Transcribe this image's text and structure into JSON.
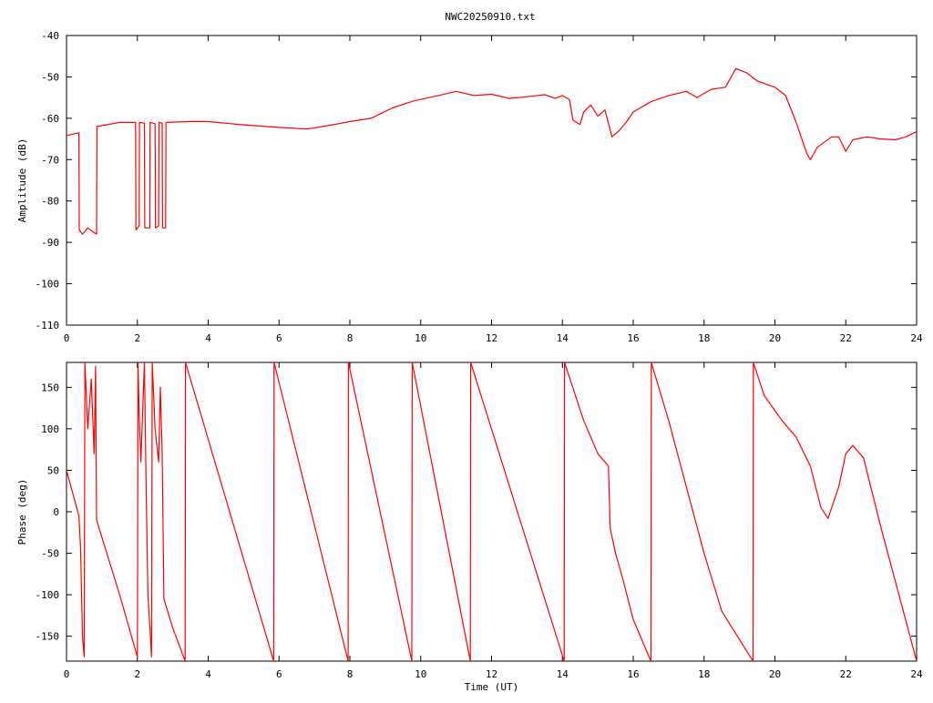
{
  "title": "NWC20250910.txt",
  "colors": {
    "trace": "#ff0000",
    "axis": "#000000",
    "background": "#ffffff"
  },
  "chart_data": [
    {
      "type": "line",
      "title": "NWC20250910.txt",
      "xlabel": "",
      "ylabel": "Amplitude (dB)",
      "xlim": [
        0,
        24
      ],
      "ylim": [
        -110,
        -40
      ],
      "xticks": [
        "0",
        "2",
        "4",
        "6",
        "8",
        "10",
        "12",
        "14",
        "16",
        "18",
        "20",
        "22",
        "24"
      ],
      "yticks": [
        "-40",
        "-50",
        "-60",
        "-70",
        "-80",
        "-90",
        "-100",
        "-110"
      ],
      "grid": false,
      "series": [
        {
          "points": [
            [
              0.0,
              -64.2
            ],
            [
              0.35,
              -63.5
            ],
            [
              0.36,
              -87.0
            ],
            [
              0.45,
              -88.0
            ],
            [
              0.6,
              -86.5
            ],
            [
              0.75,
              -87.5
            ],
            [
              0.85,
              -88.0
            ],
            [
              0.86,
              -62.0
            ],
            [
              1.5,
              -61.0
            ],
            [
              1.95,
              -61.0
            ],
            [
              1.96,
              -87.0
            ],
            [
              2.05,
              -86.0
            ],
            [
              2.06,
              -61.0
            ],
            [
              2.2,
              -61.2
            ],
            [
              2.21,
              -86.5
            ],
            [
              2.35,
              -86.5
            ],
            [
              2.36,
              -61.0
            ],
            [
              2.5,
              -61.3
            ],
            [
              2.51,
              -86.5
            ],
            [
              2.6,
              -86.0
            ],
            [
              2.61,
              -61.0
            ],
            [
              2.7,
              -61.2
            ],
            [
              2.71,
              -86.5
            ],
            [
              2.8,
              -86.5
            ],
            [
              2.81,
              -61.0
            ],
            [
              3.5,
              -60.8
            ],
            [
              4.0,
              -60.8
            ],
            [
              5.0,
              -61.6
            ],
            [
              6.0,
              -62.2
            ],
            [
              6.8,
              -62.6
            ],
            [
              7.5,
              -61.6
            ],
            [
              8.0,
              -60.8
            ],
            [
              8.6,
              -60.0
            ],
            [
              9.2,
              -57.5
            ],
            [
              9.8,
              -55.8
            ],
            [
              10.5,
              -54.5
            ],
            [
              11.0,
              -53.5
            ],
            [
              11.5,
              -54.5
            ],
            [
              12.0,
              -54.2
            ],
            [
              12.5,
              -55.2
            ],
            [
              13.0,
              -54.8
            ],
            [
              13.5,
              -54.3
            ],
            [
              13.8,
              -55.2
            ],
            [
              14.0,
              -54.5
            ],
            [
              14.2,
              -55.5
            ],
            [
              14.3,
              -60.5
            ],
            [
              14.5,
              -61.5
            ],
            [
              14.6,
              -58.5
            ],
            [
              14.8,
              -56.8
            ],
            [
              15.0,
              -59.5
            ],
            [
              15.2,
              -58.0
            ],
            [
              15.4,
              -64.5
            ],
            [
              15.6,
              -63.0
            ],
            [
              15.8,
              -61.0
            ],
            [
              16.0,
              -58.5
            ],
            [
              16.5,
              -56.0
            ],
            [
              17.0,
              -54.5
            ],
            [
              17.5,
              -53.5
            ],
            [
              17.8,
              -55.0
            ],
            [
              18.2,
              -53.0
            ],
            [
              18.6,
              -52.5
            ],
            [
              18.9,
              -48.0
            ],
            [
              19.2,
              -49.0
            ],
            [
              19.5,
              -51.0
            ],
            [
              20.0,
              -52.5
            ],
            [
              20.3,
              -54.5
            ],
            [
              20.6,
              -61.0
            ],
            [
              20.9,
              -68.5
            ],
            [
              21.0,
              -70.0
            ],
            [
              21.2,
              -67.0
            ],
            [
              21.6,
              -64.5
            ],
            [
              21.8,
              -64.5
            ],
            [
              22.0,
              -68.0
            ],
            [
              22.2,
              -65.2
            ],
            [
              22.6,
              -64.5
            ],
            [
              23.0,
              -65.0
            ],
            [
              23.4,
              -65.2
            ],
            [
              23.7,
              -64.5
            ],
            [
              24.0,
              -63.2
            ]
          ]
        }
      ]
    },
    {
      "type": "line",
      "title": "",
      "xlabel": "Time (UT)",
      "ylabel": "Phase (deg)",
      "xlim": [
        0,
        24
      ],
      "ylim": [
        -180,
        180
      ],
      "xticks": [
        "0",
        "2",
        "4",
        "6",
        "8",
        "10",
        "12",
        "14",
        "16",
        "18",
        "20",
        "22",
        "24"
      ],
      "yticks": [
        "150",
        "100",
        "50",
        "0",
        "-50",
        "-100",
        "-150"
      ],
      "grid": false,
      "series": [
        {
          "points": [
            [
              0.0,
              50
            ],
            [
              0.35,
              -5
            ],
            [
              0.4,
              -45
            ],
            [
              0.45,
              -150
            ],
            [
              0.5,
              -175
            ],
            [
              0.52,
              180
            ],
            [
              0.6,
              100
            ],
            [
              0.7,
              160
            ],
            [
              0.78,
              70
            ],
            [
              0.82,
              175
            ],
            [
              0.85,
              -10
            ],
            [
              1.5,
              -100
            ],
            [
              2.0,
              -175
            ],
            [
              2.02,
              180
            ],
            [
              2.05,
              120
            ],
            [
              2.1,
              60
            ],
            [
              2.2,
              180
            ],
            [
              2.25,
              20
            ],
            [
              2.3,
              -100
            ],
            [
              2.4,
              -175
            ],
            [
              2.42,
              180
            ],
            [
              2.5,
              100
            ],
            [
              2.6,
              60
            ],
            [
              2.65,
              150
            ],
            [
              2.7,
              70
            ],
            [
              2.75,
              -105
            ],
            [
              3.0,
              -140
            ],
            [
              3.35,
              -180
            ],
            [
              3.36,
              180
            ],
            [
              5.85,
              -180
            ],
            [
              5.86,
              180
            ],
            [
              7.95,
              -180
            ],
            [
              7.96,
              180
            ],
            [
              9.75,
              -180
            ],
            [
              9.76,
              180
            ],
            [
              11.4,
              -180
            ],
            [
              11.41,
              180
            ],
            [
              14.05,
              -180
            ],
            [
              14.06,
              180
            ],
            [
              14.6,
              110
            ],
            [
              15.0,
              70
            ],
            [
              15.3,
              55
            ],
            [
              15.35,
              -20
            ],
            [
              15.5,
              -50
            ],
            [
              15.7,
              -80
            ],
            [
              16.0,
              -130
            ],
            [
              16.5,
              -180
            ],
            [
              16.51,
              180
            ],
            [
              17.0,
              110
            ],
            [
              17.5,
              30
            ],
            [
              18.0,
              -50
            ],
            [
              18.5,
              -120
            ],
            [
              19.38,
              -180
            ],
            [
              19.39,
              180
            ],
            [
              19.7,
              140
            ],
            [
              20.2,
              110
            ],
            [
              20.6,
              90
            ],
            [
              21.0,
              55
            ],
            [
              21.3,
              5
            ],
            [
              21.5,
              -8
            ],
            [
              21.8,
              30
            ],
            [
              22.0,
              70
            ],
            [
              22.2,
              80
            ],
            [
              22.5,
              65
            ],
            [
              23.0,
              -20
            ],
            [
              23.5,
              -100
            ],
            [
              24.0,
              -180
            ]
          ]
        }
      ]
    }
  ]
}
